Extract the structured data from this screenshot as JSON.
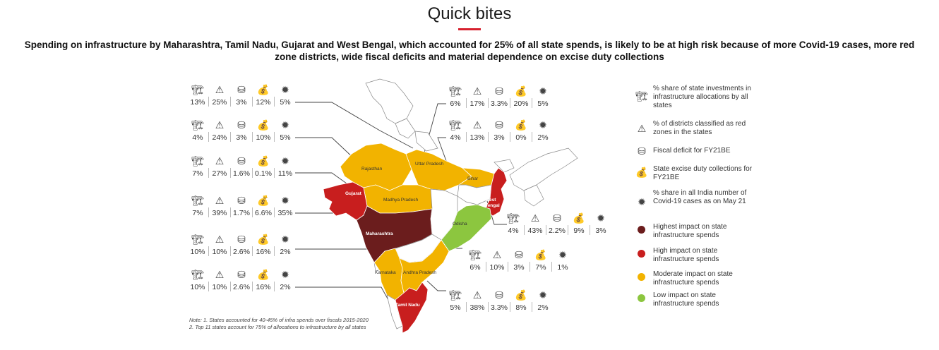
{
  "title": "Quick bites",
  "subtitle_line1": "Spending on infrastructure by Maharashtra, Tamil Nadu, Gujarat and West Bengal, which accounted for 25% of all state spends, is likely to be at high risk because of more Covid-19 cases, more red",
  "subtitle_line2": "zone districts, wide fiscal deficits and material dependence on excise duty collections",
  "colors": {
    "highest": "#6b1d1d",
    "high": "#c81e1e",
    "moderate": "#f2b300",
    "low": "#8cc63f",
    "neutral": "#ffffff",
    "accent": "#d6202e"
  },
  "icons": [
    "infrastructure-icon",
    "warning-icon",
    "coins-icon",
    "money-bag-icon",
    "virus-icon"
  ],
  "states": [
    {
      "label": "Rajasthan",
      "impact": "moderate",
      "stats": [
        "13%",
        "25%",
        "3%",
        "12%",
        "5%"
      ]
    },
    {
      "label": "Uttar Pradesh",
      "impact": "moderate",
      "stats": [
        "6%",
        "17%",
        "3.3%",
        "20%",
        "5%"
      ]
    },
    {
      "label": "Bihar",
      "impact": "moderate",
      "stats": [
        "4%",
        "13%",
        "3%",
        "0%",
        "2%"
      ]
    },
    {
      "label": "Madhya Pradesh",
      "impact": "moderate",
      "stats": [
        "4%",
        "24%",
        "3%",
        "10%",
        "5%"
      ]
    },
    {
      "label": "Gujarat",
      "impact": "high",
      "stats": [
        "7%",
        "27%",
        "1.6%",
        "0.1%",
        "11%"
      ]
    },
    {
      "label": "Maharashtra",
      "impact": "highest",
      "stats": [
        "7%",
        "39%",
        "1.7%",
        "6.6%",
        "35%"
      ]
    },
    {
      "label": "West Bengal",
      "impact": "high",
      "stats": [
        "4%",
        "43%",
        "2.2%",
        "9%",
        "3%"
      ]
    },
    {
      "label": "Odisha",
      "impact": "low",
      "stats": [
        "6%",
        "10%",
        "3%",
        "7%",
        "1%"
      ]
    },
    {
      "label": "Karnataka",
      "impact": "moderate",
      "stats": [
        "10%",
        "10%",
        "2.6%",
        "16%",
        "2%"
      ]
    },
    {
      "label": "Andhra Pradesh",
      "impact": "moderate",
      "stats": [
        "10%",
        "10%",
        "2.6%",
        "16%",
        "2%"
      ]
    },
    {
      "label": "Tamil Nadu",
      "impact": "high",
      "stats": [
        "5%",
        "38%",
        "3.3%",
        "8%",
        "2%"
      ]
    }
  ],
  "legend": {
    "infra": "% share of state investments in infrastructure allocations by all states",
    "red_zones": "% of districts classified as red zones in the states",
    "fiscal_deficit": "Fiscal deficit for FY21BE",
    "excise": "State excise duty collections for FY21BE",
    "covid_share": "% share in all India number of Covid-19 cases as on May 21",
    "highest": "Highest impact on state infrastructure spends",
    "high": "High impact on state infrastructure spends",
    "moderate": "Moderate impact on state infrastructure spends",
    "low": "Low impact on state infrastructure spends"
  },
  "note_line1": "Note: 1. States accounted for 40-45% of infra spends over fiscals 2015-2020",
  "note_line2": "2. Top 11 states account for 75% of allocations to infrastructure by all states"
}
